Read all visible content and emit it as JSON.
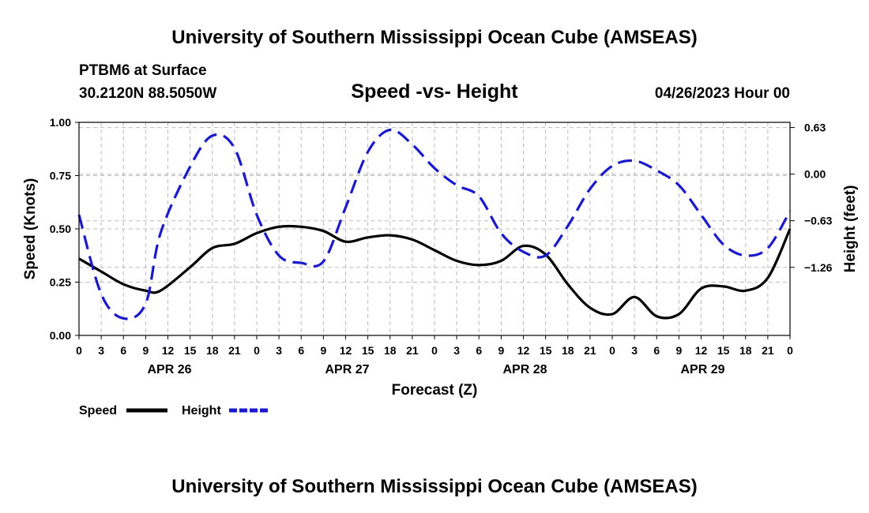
{
  "header": {
    "title": "University of Southern Mississippi Ocean Cube (AMSEAS)",
    "station": "PTBM6 at Surface",
    "location": "30.2120N  88.5050W",
    "subtitle": "Speed -vs- Height",
    "datetime": "04/26/2023 Hour 00"
  },
  "footer": {
    "title": "University of Southern Mississippi Ocean Cube (AMSEAS)"
  },
  "legend": {
    "speed_label": "Speed",
    "height_label": "Height"
  },
  "colors": {
    "speed": "#000000",
    "height": "#1a1acc"
  },
  "chart_data": {
    "type": "line",
    "title": "Speed -vs- Height",
    "xlabel": "Forecast (Z)",
    "ylabel_left": "Speed (Knots)",
    "ylabel_right": "Height (feet)",
    "x_unit": "hours from 04/26/2023 00Z",
    "xlim": [
      0,
      96
    ],
    "x_ticks": [
      0,
      3,
      6,
      9,
      12,
      15,
      18,
      21,
      24,
      27,
      30,
      33,
      36,
      39,
      42,
      45,
      48,
      51,
      54,
      57,
      60,
      63,
      66,
      69,
      72,
      75,
      78,
      81,
      84,
      87,
      90,
      93,
      96
    ],
    "x_tick_labels": [
      "0",
      "3",
      "6",
      "9",
      "12",
      "15",
      "18",
      "21",
      "0",
      "3",
      "6",
      "9",
      "12",
      "15",
      "18",
      "21",
      "0",
      "3",
      "6",
      "9",
      "12",
      "15",
      "18",
      "21",
      "0",
      "3",
      "6",
      "9",
      "12",
      "15",
      "18",
      "21",
      "0"
    ],
    "day_labels": [
      {
        "x": 12,
        "label": "APR 26"
      },
      {
        "x": 36,
        "label": "APR 27"
      },
      {
        "x": 60,
        "label": "APR 28"
      },
      {
        "x": 84,
        "label": "APR 29"
      }
    ],
    "ylim_left": [
      0,
      1.0
    ],
    "y_ticks_left": [
      0.0,
      0.25,
      0.5,
      0.75,
      1.0
    ],
    "y_tick_labels_left": [
      "0.00",
      "0.25",
      "0.50",
      "0.75",
      "1.00"
    ],
    "ylim_right": [
      -2.18,
      0.7
    ],
    "y_ticks_right": [
      0.63,
      0.0,
      -0.63,
      -1.26
    ],
    "y_tick_labels_right": [
      "0.63",
      "0.00",
      "−0.63",
      "−1.26"
    ],
    "grid": true,
    "legend_position": "bottom-left",
    "series": [
      {
        "name": "Speed",
        "axis": "left",
        "style": "solid",
        "x": [
          0,
          3,
          6,
          9,
          11,
          15,
          18,
          21,
          24,
          27,
          30,
          33,
          36,
          39,
          42,
          45,
          48,
          51,
          54,
          57,
          60,
          63,
          66,
          69,
          72,
          75,
          78,
          81,
          84,
          87,
          90,
          93,
          96
        ],
        "values": [
          0.36,
          0.3,
          0.24,
          0.21,
          0.21,
          0.32,
          0.41,
          0.43,
          0.48,
          0.51,
          0.51,
          0.49,
          0.44,
          0.46,
          0.47,
          0.45,
          0.4,
          0.35,
          0.33,
          0.35,
          0.42,
          0.38,
          0.24,
          0.13,
          0.1,
          0.18,
          0.09,
          0.1,
          0.22,
          0.23,
          0.21,
          0.27,
          0.5
        ]
      },
      {
        "name": "Height",
        "axis": "right",
        "style": "dashed",
        "x": [
          0,
          3,
          6,
          9,
          11,
          15,
          18,
          21,
          24,
          27,
          30,
          33,
          36,
          39,
          42,
          45,
          48,
          51,
          54,
          57,
          60,
          63,
          66,
          69,
          72,
          75,
          78,
          81,
          84,
          87,
          90,
          93,
          96
        ],
        "values": [
          -0.55,
          -1.62,
          -1.95,
          -1.75,
          -0.8,
          0.1,
          0.52,
          0.35,
          -0.55,
          -1.1,
          -1.2,
          -1.18,
          -0.45,
          0.3,
          0.6,
          0.4,
          0.08,
          -0.15,
          -0.3,
          -0.8,
          -1.05,
          -1.1,
          -0.7,
          -0.2,
          0.11,
          0.18,
          0.05,
          -0.15,
          -0.55,
          -0.95,
          -1.1,
          -1.0,
          -0.5
        ]
      }
    ]
  }
}
